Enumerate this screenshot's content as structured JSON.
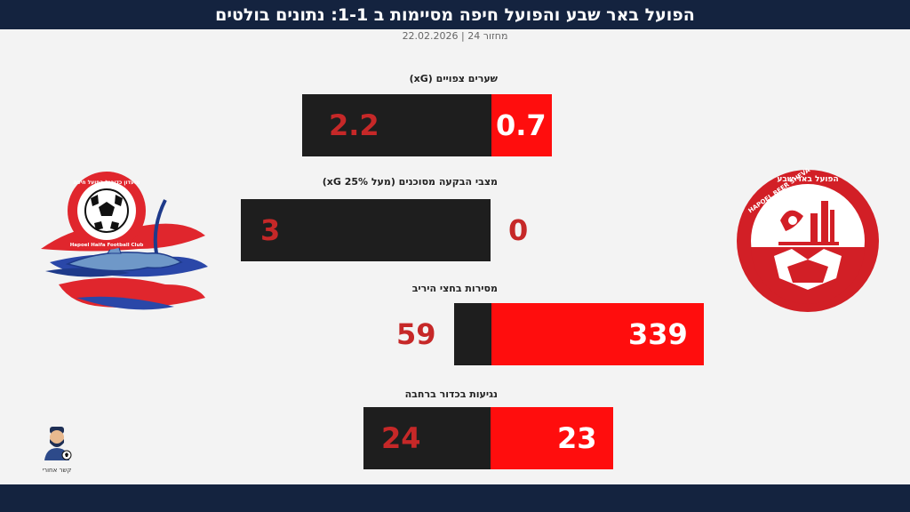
{
  "header": {
    "title": "הפועל באר שבע והפועל חיפה מסיימות ב 1-1: נתונים בולטים",
    "subtitle": "מחזור 24 | 22.02.2026"
  },
  "teams": {
    "left": {
      "logo_text": "Hapoel Haifa Football Club",
      "logo_text_he": "מועדון כדורגל הפועל חיפה"
    },
    "right": {
      "logo_text": "HAPOEL BEER SHEVA",
      "logo_text_he": "הפועל באר-שבע"
    }
  },
  "metrics": [
    {
      "label": "שערים צפויים (xG)",
      "hapoel_beer_sheva": "0.7",
      "hapoel_haifa": "2.2"
    },
    {
      "label": "מצבי הבקעה מסוכנים (מעל 25% xG)",
      "hapoel_beer_sheva": "0",
      "hapoel_haifa": "3"
    },
    {
      "label": "מסירות בחצי היריב",
      "hapoel_beer_sheva": "339",
      "hapoel_haifa": "59"
    },
    {
      "label": "נגיעות בכדור ברחבה",
      "hapoel_beer_sheva": "23",
      "hapoel_haifa": "24"
    }
  ],
  "author": {
    "label": "קשר אחורי"
  },
  "colors": {
    "header_bg": "#14233f",
    "red": "#ff0d0d",
    "dark": "#1e1e1e",
    "value_red": "#c62828"
  }
}
